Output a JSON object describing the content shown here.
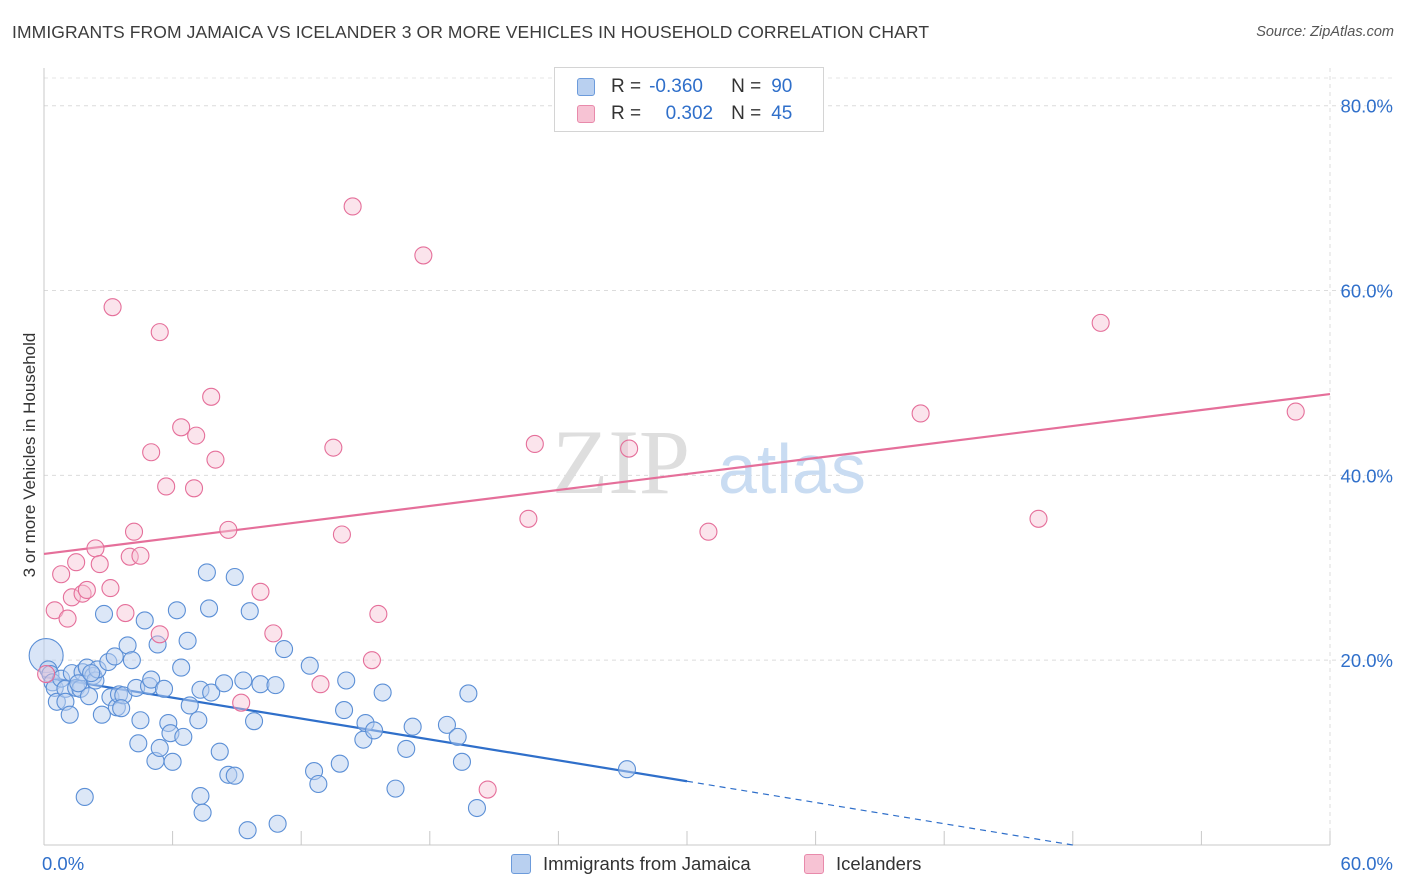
{
  "title": "IMMIGRANTS FROM JAMAICA VS ICELANDER 3 OR MORE VEHICLES IN HOUSEHOLD CORRELATION CHART",
  "source": "Source: ZipAtlas.com",
  "watermark": {
    "zip": "ZIP",
    "atlas": "atlas"
  },
  "legend": {
    "rows": [
      {
        "r_label": "R =",
        "r_value": "-0.360",
        "n_label": "N =",
        "n_value": "90"
      },
      {
        "r_label": "R =",
        "r_value": "0.302",
        "n_label": "N =",
        "n_value": "45"
      }
    ]
  },
  "chart_data": {
    "type": "scatter",
    "title": "IMMIGRANTS FROM JAMAICA VS ICELANDER 3 OR MORE VEHICLES IN HOUSEHOLD CORRELATION CHART",
    "xlabel": "",
    "ylabel": "3 or more Vehicles in Household",
    "xlim": [
      0,
      60
    ],
    "ylim": [
      0,
      83
    ],
    "x_tick_labels": [
      "0.0%",
      "60.0%"
    ],
    "y_tick_labels": [
      "20.0%",
      "40.0%",
      "60.0%",
      "80.0%"
    ],
    "y_ticks": [
      20,
      40,
      60,
      80
    ],
    "grid": true,
    "legend_position": "bottom",
    "colors": {
      "jamaica": "#5b8fd6",
      "jamaica_fill": "#b9d0f0",
      "iceland": "#e56f9a",
      "iceland_fill": "#f7c3d4",
      "axis_text": "#2f6fca"
    },
    "series": [
      {
        "name": "Immigrants from Jamaica",
        "r": -0.36,
        "n": 90,
        "trend": {
          "x0": 0,
          "y0": 18.2,
          "x1": 30,
          "y1": 6.9,
          "dashed_to_x": 48,
          "dashed_to_y": 0
        },
        "points": [
          [
            0.1,
            20.5
          ],
          [
            0.2,
            19.0
          ],
          [
            0.3,
            18.5
          ],
          [
            0.4,
            17.6
          ],
          [
            0.5,
            17.0
          ],
          [
            0.6,
            15.5
          ],
          [
            0.8,
            18.0
          ],
          [
            1.0,
            16.9
          ],
          [
            1.0,
            15.5
          ],
          [
            1.2,
            14.1
          ],
          [
            1.3,
            18.6
          ],
          [
            1.5,
            17.0
          ],
          [
            1.7,
            16.9
          ],
          [
            1.8,
            18.7
          ],
          [
            2.0,
            19.2
          ],
          [
            2.1,
            16.1
          ],
          [
            2.3,
            18.3
          ],
          [
            2.4,
            17.8
          ],
          [
            2.5,
            19.0
          ],
          [
            2.7,
            14.1
          ],
          [
            2.8,
            25.0
          ],
          [
            3.0,
            19.8
          ],
          [
            3.1,
            16.0
          ],
          [
            3.3,
            20.4
          ],
          [
            3.4,
            14.9
          ],
          [
            3.5,
            16.3
          ],
          [
            3.7,
            16.2
          ],
          [
            3.9,
            21.6
          ],
          [
            4.1,
            20.0
          ],
          [
            4.3,
            17.0
          ],
          [
            4.4,
            11.0
          ],
          [
            4.5,
            13.5
          ],
          [
            4.7,
            24.3
          ],
          [
            4.9,
            17.2
          ],
          [
            5.0,
            17.9
          ],
          [
            5.2,
            9.1
          ],
          [
            5.3,
            21.7
          ],
          [
            5.4,
            10.5
          ],
          [
            5.6,
            16.9
          ],
          [
            5.8,
            13.2
          ],
          [
            5.9,
            12.1
          ],
          [
            6.0,
            9.0
          ],
          [
            6.2,
            25.4
          ],
          [
            6.4,
            19.2
          ],
          [
            6.5,
            11.7
          ],
          [
            6.8,
            15.1
          ],
          [
            7.2,
            13.5
          ],
          [
            7.3,
            16.8
          ],
          [
            7.6,
            29.5
          ],
          [
            7.7,
            25.6
          ],
          [
            7.8,
            16.5
          ],
          [
            8.2,
            10.1
          ],
          [
            8.4,
            17.5
          ],
          [
            8.6,
            7.6
          ],
          [
            8.9,
            7.5
          ],
          [
            9.3,
            17.8
          ],
          [
            9.6,
            25.3
          ],
          [
            9.8,
            13.4
          ],
          [
            10.1,
            17.4
          ],
          [
            10.8,
            17.3
          ],
          [
            11.2,
            21.2
          ],
          [
            12.4,
            19.4
          ],
          [
            12.6,
            8.0
          ],
          [
            12.8,
            6.6
          ],
          [
            13.8,
            8.8
          ],
          [
            14.0,
            14.6
          ],
          [
            14.1,
            17.8
          ],
          [
            14.9,
            11.4
          ],
          [
            15.0,
            13.2
          ],
          [
            15.4,
            12.4
          ],
          [
            15.8,
            16.5
          ],
          [
            16.4,
            6.1
          ],
          [
            16.9,
            10.4
          ],
          [
            17.2,
            12.8
          ],
          [
            18.8,
            13.0
          ],
          [
            19.3,
            11.7
          ],
          [
            19.5,
            9.0
          ],
          [
            19.8,
            16.4
          ],
          [
            20.2,
            4.0
          ],
          [
            27.2,
            8.2
          ],
          [
            1.9,
            5.2
          ],
          [
            7.3,
            5.3
          ],
          [
            7.4,
            3.5
          ],
          [
            9.5,
            1.6
          ],
          [
            10.9,
            2.3
          ],
          [
            1.6,
            17.5
          ],
          [
            2.2,
            18.6
          ],
          [
            3.6,
            14.8
          ],
          [
            8.9,
            29.0
          ],
          [
            6.7,
            22.1
          ]
        ]
      },
      {
        "name": "Icelanders",
        "r": 0.302,
        "n": 45,
        "trend": {
          "x0": 0,
          "y0": 31.5,
          "x1": 60,
          "y1": 48.8
        },
        "points": [
          [
            0.1,
            18.5
          ],
          [
            0.5,
            25.4
          ],
          [
            0.8,
            29.3
          ],
          [
            1.1,
            24.5
          ],
          [
            1.3,
            26.8
          ],
          [
            1.5,
            30.6
          ],
          [
            1.8,
            27.2
          ],
          [
            2.0,
            27.6
          ],
          [
            2.4,
            32.1
          ],
          [
            2.6,
            30.4
          ],
          [
            3.1,
            27.8
          ],
          [
            3.2,
            58.2
          ],
          [
            3.8,
            25.1
          ],
          [
            4.0,
            31.2
          ],
          [
            4.2,
            33.9
          ],
          [
            4.5,
            31.3
          ],
          [
            5.0,
            42.5
          ],
          [
            5.4,
            22.8
          ],
          [
            5.4,
            55.5
          ],
          [
            5.7,
            38.8
          ],
          [
            6.4,
            45.2
          ],
          [
            7.0,
            38.6
          ],
          [
            7.1,
            44.3
          ],
          [
            7.8,
            48.5
          ],
          [
            8.0,
            41.7
          ],
          [
            8.6,
            34.1
          ],
          [
            9.2,
            15.4
          ],
          [
            10.1,
            27.4
          ],
          [
            10.7,
            22.9
          ],
          [
            12.9,
            17.4
          ],
          [
            13.5,
            43.0
          ],
          [
            13.9,
            33.6
          ],
          [
            14.4,
            69.1
          ],
          [
            15.3,
            20.0
          ],
          [
            15.6,
            25.0
          ],
          [
            17.7,
            63.8
          ],
          [
            20.7,
            6.0
          ],
          [
            22.6,
            35.3
          ],
          [
            22.9,
            43.4
          ],
          [
            27.3,
            42.9
          ],
          [
            31.0,
            33.9
          ],
          [
            40.9,
            46.7
          ],
          [
            46.4,
            35.3
          ],
          [
            49.3,
            56.5
          ],
          [
            58.4,
            46.9
          ]
        ]
      }
    ]
  }
}
